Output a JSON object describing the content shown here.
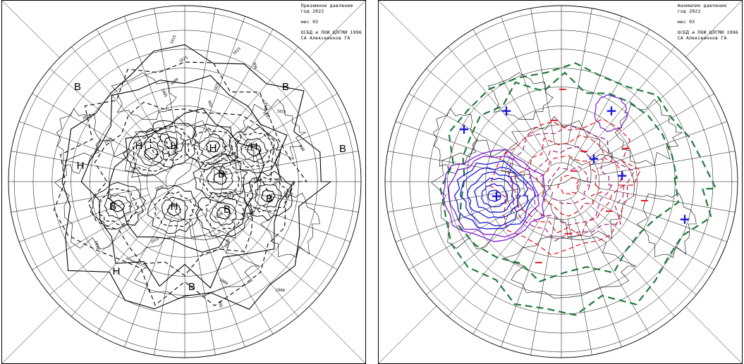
{
  "maps": [
    {
      "title_line1": "Приземное давление",
      "title_line2": "год 2022",
      "title_line3": "мес 03",
      "title_line4": "ОСБД и ПОИ ЦЛГМИ 1996",
      "title_line5": "СА Алексеенков ГА",
      "isobar_labels": [
        "1025",
        "1020",
        "1010",
        "1015",
        "1000",
        "1005",
        "995",
        "990",
        "1035",
        "1030"
      ],
      "pressure_centers": [
        {
          "label": "В"
        },
        {
          "label": "В"
        },
        {
          "label": "В"
        },
        {
          "label": "В"
        },
        {
          "label": "В"
        },
        {
          "label": "В"
        },
        {
          "label": "В"
        },
        {
          "label": "Н"
        },
        {
          "label": "Н"
        },
        {
          "label": "Н"
        },
        {
          "label": "Н"
        },
        {
          "label": "Н"
        },
        {
          "label": "Н"
        },
        {
          "label": "Н"
        },
        {
          "label": "В"
        }
      ]
    },
    {
      "title_line1": "Аномалия давления",
      "title_line2": "год 2022",
      "title_line3": "мес 03",
      "title_line4": "ОСБД и ПОИ ЦЛГМИ 1996",
      "title_line5": "СА Алексеенков ГА",
      "anomaly_signs": [
        "+",
        "+",
        "+",
        "+",
        "+",
        "+",
        "+",
        "−",
        "−",
        "−",
        "−",
        "−",
        "−",
        "−",
        "−",
        "−"
      ],
      "colors": {
        "positive": "#1a1adb",
        "negative": "#e0101a",
        "zero_line": "#1e7a3a",
        "neg_contour": "#a0207a",
        "pos_contour": "#7a1ad0"
      }
    }
  ]
}
